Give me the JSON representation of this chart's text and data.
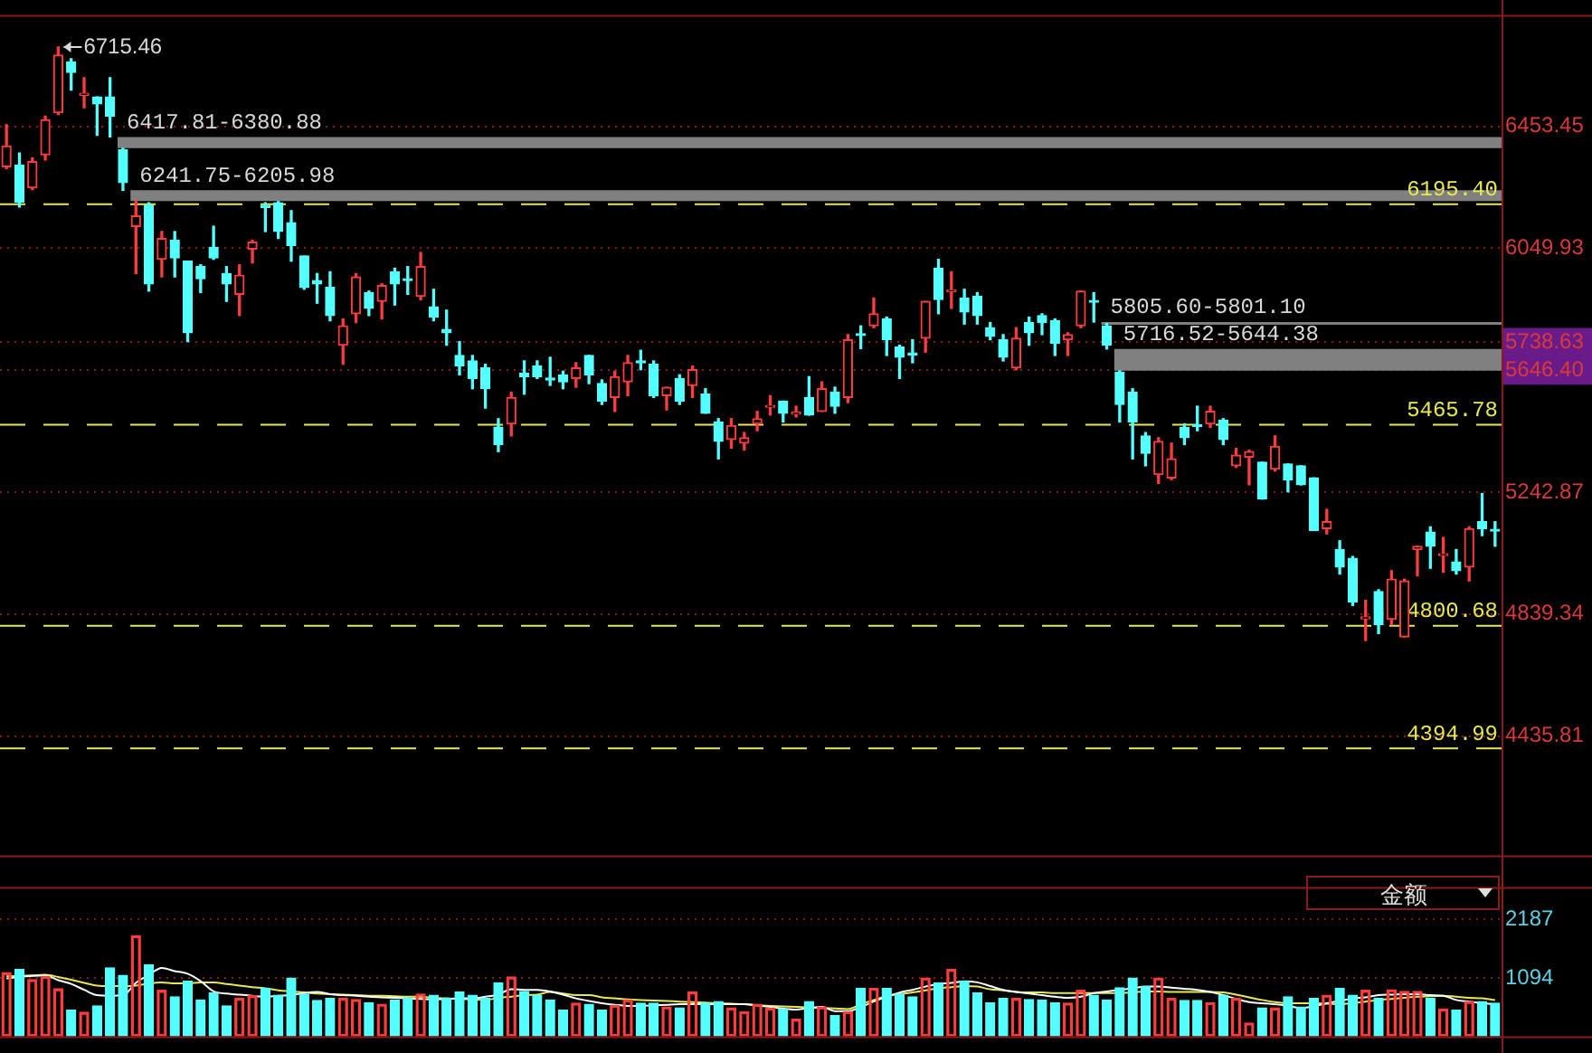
{
  "chart_data": [
    {
      "type": "candlestick",
      "tick_labels": "y",
      "grid": "y",
      "ylim": [
        4041,
        6816
      ],
      "yticks": [
        6453.45,
        6049.93,
        5738.63,
        {
          "value": 5646.4,
          "label": "5646.40"
        },
        5242.87,
        4839.34,
        4435.81
      ],
      "categories": [
        null,
        null,
        null,
        null,
        null,
        null,
        null,
        null,
        null,
        null,
        null,
        null,
        null,
        null,
        null,
        null,
        null,
        null,
        null,
        null,
        null,
        null,
        null,
        null,
        null,
        null,
        null,
        null,
        null,
        null,
        null,
        null,
        null,
        null,
        null,
        null,
        null,
        null,
        null,
        null,
        null,
        null,
        null,
        null,
        null,
        null,
        null,
        null,
        null,
        null,
        null,
        null,
        null,
        null,
        null,
        null,
        null,
        null,
        null,
        null,
        null,
        null,
        null,
        null,
        null,
        null,
        null,
        null,
        null,
        null,
        null,
        null,
        null,
        null,
        null,
        null,
        null,
        null,
        null,
        null,
        null,
        null,
        null,
        null,
        null,
        null,
        null,
        null,
        null,
        null,
        null,
        null,
        null,
        null,
        null,
        null,
        null,
        null,
        null,
        null,
        null,
        null,
        null,
        null,
        null,
        null,
        null,
        null,
        null,
        null,
        null,
        null,
        null,
        null,
        null,
        null
      ],
      "ohlc": [
        [
          6319,
          6458,
          6313,
          6388
        ],
        [
          6325,
          6365,
          6186,
          6203
        ],
        [
          6250,
          6348,
          6244,
          6336
        ],
        [
          6359,
          6487,
          6342,
          6475
        ],
        [
          6498,
          6715.46,
          6492,
          6689
        ],
        [
          6666,
          6677,
          6573,
          6631
        ],
        [
          6556,
          6614,
          6515,
          6562
        ],
        [
          6550,
          6550,
          6423,
          6527
        ],
        [
          6550,
          6614,
          6417.81,
          6487
        ],
        [
          6375,
          6380.88,
          6241.75,
          6267
        ],
        [
          6122,
          6205.98,
          5966,
          6157
        ],
        [
          6192,
          6200,
          5908,
          5932
        ],
        [
          6013,
          6105,
          5955,
          6082
        ],
        [
          6076,
          6105,
          5955,
          6018
        ],
        [
          6007,
          6007,
          5741,
          5770
        ],
        [
          5989,
          5995,
          5903,
          5949
        ],
        [
          6053,
          6122,
          6013,
          6018
        ],
        [
          5966,
          5989,
          5874,
          5932
        ],
        [
          5897,
          5995,
          5827,
          5961
        ],
        [
          6047,
          6076,
          6001,
          6070
        ],
        [
          6190,
          6200,
          6105,
          6185
        ],
        [
          6200,
          6204,
          6082,
          6105
        ],
        [
          6134,
          6174,
          6007,
          6059
        ],
        [
          6024,
          6024,
          5914,
          5920
        ],
        [
          5943,
          5966,
          5868,
          5932
        ],
        [
          5920,
          5972,
          5810,
          5827
        ],
        [
          5729,
          5816,
          5666,
          5793
        ],
        [
          5833,
          5966,
          5804,
          5955
        ],
        [
          5903,
          5908,
          5827,
          5851
        ],
        [
          5874,
          5932,
          5816,
          5926
        ],
        [
          5972,
          5984,
          5862,
          5932
        ],
        [
          5949,
          5989,
          5897,
          5943
        ],
        [
          5891,
          6036,
          5879,
          5989
        ],
        [
          5856,
          5914,
          5810,
          5822
        ],
        [
          5781,
          5845,
          5729,
          5770
        ],
        [
          5695,
          5741,
          5631,
          5660
        ],
        [
          5677,
          5695,
          5585,
          5619
        ],
        [
          5654,
          5666,
          5521,
          5585
        ],
        [
          5458,
          5486,
          5377,
          5400
        ],
        [
          5469,
          5573,
          5429,
          5556
        ],
        [
          5637,
          5677,
          5567,
          5625
        ],
        [
          5660,
          5677,
          5619,
          5625
        ],
        [
          5619,
          5689,
          5596,
          5614
        ],
        [
          5631,
          5643,
          5585,
          5608
        ],
        [
          5619,
          5671,
          5590,
          5654
        ],
        [
          5695,
          5695,
          5602,
          5631
        ],
        [
          5602,
          5614,
          5533,
          5544
        ],
        [
          5556,
          5643,
          5510,
          5625
        ],
        [
          5608,
          5695,
          5562,
          5671
        ],
        [
          5677,
          5712,
          5648,
          5671
        ],
        [
          5666,
          5677,
          5556,
          5562
        ],
        [
          5562,
          5590,
          5515,
          5590
        ],
        [
          5619,
          5631,
          5533,
          5544
        ],
        [
          5596,
          5660,
          5556,
          5648
        ],
        [
          5567,
          5585,
          5504,
          5504
        ],
        [
          5475,
          5486,
          5353,
          5411
        ],
        [
          5417,
          5486,
          5388,
          5463
        ],
        [
          5405,
          5440,
          5382,
          5423
        ],
        [
          5469,
          5510,
          5446,
          5486
        ],
        [
          5524,
          5562,
          5498,
          5530
        ],
        [
          5544,
          5544,
          5475,
          5504
        ],
        [
          5501,
          5527,
          5492,
          5504
        ],
        [
          5556,
          5625,
          5498,
          5498
        ],
        [
          5510,
          5608,
          5510,
          5585
        ],
        [
          5573,
          5590,
          5504,
          5527
        ],
        [
          5556,
          5764,
          5539,
          5747
        ],
        [
          5767,
          5793,
          5718,
          5761
        ],
        [
          5793,
          5885,
          5787,
          5833
        ],
        [
          5816,
          5822,
          5695,
          5747
        ],
        [
          5723,
          5729,
          5619,
          5689
        ],
        [
          5703,
          5747,
          5671,
          5697
        ],
        [
          5752,
          5874,
          5706,
          5874
        ],
        [
          5984,
          6013,
          5833,
          5880
        ],
        [
          5906,
          5972,
          5851,
          5911
        ],
        [
          5885,
          5914,
          5799,
          5839
        ],
        [
          5891,
          5903,
          5799,
          5827
        ],
        [
          5787,
          5804,
          5747,
          5758
        ],
        [
          5747,
          5764,
          5677,
          5689
        ],
        [
          5654,
          5787,
          5648,
          5752
        ],
        [
          5804,
          5822,
          5729,
          5770
        ],
        [
          5827,
          5833,
          5764,
          5804
        ],
        [
          5810,
          5816,
          5695,
          5735
        ],
        [
          5747,
          5770,
          5695,
          5764
        ],
        [
          5793,
          5908,
          5787,
          5908
        ],
        [
          5877,
          5903,
          5805.6,
          5871
        ],
        [
          5793,
          5801.1,
          5716.52,
          5729
        ],
        [
          5640,
          5644.38,
          5475,
          5533
        ],
        [
          5573,
          5585,
          5353,
          5475
        ],
        [
          5429,
          5440,
          5330,
          5371
        ],
        [
          5301,
          5423,
          5272,
          5411
        ],
        [
          5290,
          5405,
          5284,
          5353
        ],
        [
          5457,
          5469,
          5400,
          5423
        ],
        [
          5466,
          5527,
          5446,
          5460
        ],
        [
          5469,
          5527,
          5457,
          5510
        ],
        [
          5481,
          5486,
          5400,
          5417
        ],
        [
          5330,
          5388,
          5325,
          5365
        ],
        [
          5359,
          5382,
          5267,
          5377
        ],
        [
          5342,
          5342,
          5220,
          5220
        ],
        [
          5319,
          5429,
          5313,
          5394
        ],
        [
          5336,
          5336,
          5244,
          5284
        ],
        [
          5330,
          5330,
          5267,
          5267
        ],
        [
          5290,
          5290,
          5116,
          5116
        ],
        [
          5122,
          5186,
          5105,
          5145
        ],
        [
          5053,
          5082,
          4972,
          4995
        ],
        [
          5024,
          5030,
          4868,
          4879
        ],
        [
          4824,
          4885,
          4752,
          4830
        ],
        [
          4914,
          4920,
          4775,
          4804
        ],
        [
          4822,
          4983,
          4804,
          4955
        ],
        [
          4764,
          4955,
          4764,
          4949
        ],
        [
          5053,
          5064,
          4966,
          5064
        ],
        [
          5111,
          5128,
          4991,
          5064
        ],
        [
          5033,
          5093,
          4978,
          5038
        ],
        [
          5012,
          5053,
          4972,
          4983
        ],
        [
          4995,
          5128,
          4949,
          5122
        ],
        [
          5145,
          5238,
          5099,
          5122
        ],
        [
          5119,
          5145,
          5064,
          5114
        ]
      ],
      "ref_lines": [
        {
          "axis": "y",
          "value": 6195.4,
          "label": "6195.40",
          "color": "#e8e850",
          "line_style": "dashed"
        },
        {
          "axis": "y",
          "value": 5465.78,
          "label": "5465.78",
          "color": "#e8e850",
          "line_style": "dashed"
        },
        {
          "axis": "y",
          "value": 4800.68,
          "label": "4800.68",
          "color": "#e8e850",
          "line_style": "dashed"
        },
        {
          "axis": "y",
          "value": 4394.99,
          "label": "4394.99",
          "color": "#e8e850",
          "line_style": "dashed"
        }
      ],
      "bands": [
        {
          "axis": "y",
          "from": 6417.81,
          "to": 6380.88,
          "label": "6417.81-6380.88",
          "color": "#808080"
        },
        {
          "axis": "y",
          "from": 6241.75,
          "to": 6205.98,
          "label": "6241.75-6205.98",
          "color": "#808080"
        },
        {
          "axis": "y",
          "from": 5805.6,
          "to": 5801.1,
          "label": "5805.60-5801.10",
          "color": "#808080"
        },
        {
          "axis": "y",
          "from": 5716.52,
          "to": 5644.38,
          "label": "5716.52-5644.38",
          "color": "#808080"
        }
      ],
      "annotations": [
        "6715.46"
      ]
    },
    {
      "type": "bar",
      "title": "金额",
      "tick_labels": "y",
      "grid": "y",
      "ylim": [
        0,
        2760
      ],
      "yticks": [
        2187,
        1094
      ],
      "categories": [
        null,
        null,
        null,
        null,
        null,
        null,
        null,
        null,
        null,
        null,
        null,
        null,
        null,
        null,
        null,
        null,
        null,
        null,
        null,
        null,
        null,
        null,
        null,
        null,
        null,
        null,
        null,
        null,
        null,
        null,
        null,
        null,
        null,
        null,
        null,
        null,
        null,
        null,
        null,
        null,
        null,
        null,
        null,
        null,
        null,
        null,
        null,
        null,
        null,
        null,
        null,
        null,
        null,
        null,
        null,
        null,
        null,
        null,
        null,
        null,
        null,
        null,
        null,
        null,
        null,
        null,
        null,
        null,
        null,
        null,
        null,
        null,
        null,
        null,
        null,
        null,
        null,
        null,
        null,
        null,
        null,
        null,
        null,
        null,
        null,
        null,
        null,
        null,
        null,
        null,
        null,
        null,
        null,
        null,
        null,
        null,
        null,
        null,
        null,
        null,
        null,
        null,
        null,
        null,
        null,
        null,
        null,
        null,
        null,
        null,
        null,
        null,
        null,
        null,
        null,
        null
      ],
      "series": [
        {
          "type": "bar",
          "colors": [
            "#ff3c3c",
            "#54ffff",
            "#ff3c3c",
            "#ff3c3c",
            "#ff3c3c",
            "#54ffff",
            "#ff3c3c",
            "#54ffff",
            "#54ffff",
            "#54ffff",
            "#ff3c3c",
            "#54ffff",
            "#ff3c3c",
            "#54ffff",
            "#54ffff",
            "#54ffff",
            "#54ffff",
            "#54ffff",
            "#ff3c3c",
            "#ff3c3c",
            "#54ffff",
            "#54ffff",
            "#54ffff",
            "#54ffff",
            "#54ffff",
            "#54ffff",
            "#ff3c3c",
            "#ff3c3c",
            "#54ffff",
            "#ff3c3c",
            "#54ffff",
            "#54ffff",
            "#ff3c3c",
            "#54ffff",
            "#54ffff",
            "#54ffff",
            "#54ffff",
            "#54ffff",
            "#54ffff",
            "#ff3c3c",
            "#54ffff",
            "#54ffff",
            "#54ffff",
            "#54ffff",
            "#ff3c3c",
            "#54ffff",
            "#54ffff",
            "#ff3c3c",
            "#ff3c3c",
            "#54ffff",
            "#54ffff",
            "#ff3c3c",
            "#54ffff",
            "#ff3c3c",
            "#54ffff",
            "#54ffff",
            "#ff3c3c",
            "#ff3c3c",
            "#ff3c3c",
            "#ff3c3c",
            "#54ffff",
            "#ff3c3c",
            "#54ffff",
            "#ff3c3c",
            "#54ffff",
            "#ff3c3c",
            "#54ffff",
            "#ff3c3c",
            "#54ffff",
            "#54ffff",
            "#54ffff",
            "#ff3c3c",
            "#54ffff",
            "#ff3c3c",
            "#54ffff",
            "#54ffff",
            "#54ffff",
            "#54ffff",
            "#ff3c3c",
            "#54ffff",
            "#54ffff",
            "#54ffff",
            "#ff3c3c",
            "#ff3c3c",
            "#54ffff",
            "#54ffff",
            "#54ffff",
            "#54ffff",
            "#54ffff",
            "#ff3c3c",
            "#ff3c3c",
            "#54ffff",
            "#54ffff",
            "#ff3c3c",
            "#54ffff",
            "#ff3c3c",
            "#ff3c3c",
            "#54ffff",
            "#ff3c3c",
            "#54ffff",
            "#54ffff",
            "#54ffff",
            "#ff3c3c",
            "#54ffff",
            "#54ffff",
            "#ff3c3c",
            "#54ffff",
            "#ff3c3c",
            "#ff3c3c",
            "#ff3c3c",
            "#54ffff",
            "#ff3c3c",
            "#54ffff",
            "#ff3c3c",
            "#54ffff",
            "#54ffff"
          ],
          "values": [
            1190,
            1250,
            1060,
            1120,
            890,
            490,
            450,
            570,
            1280,
            1140,
            1880,
            1340,
            860,
            740,
            1030,
            680,
            810,
            570,
            710,
            760,
            900,
            770,
            1090,
            790,
            670,
            710,
            710,
            690,
            630,
            600,
            680,
            710,
            790,
            770,
            710,
            830,
            770,
            710,
            1000,
            1110,
            840,
            770,
            680,
            490,
            620,
            600,
            490,
            580,
            680,
            620,
            620,
            550,
            530,
            830,
            620,
            650,
            530,
            460,
            600,
            530,
            510,
            320,
            650,
            550,
            390,
            460,
            900,
            900,
            900,
            790,
            740,
            1090,
            1000,
            1250,
            1030,
            810,
            630,
            710,
            710,
            690,
            680,
            630,
            620,
            860,
            770,
            680,
            910,
            1090,
            930,
            1090,
            710,
            670,
            670,
            630,
            770,
            710,
            250,
            530,
            530,
            740,
            550,
            710,
            770,
            900,
            770,
            860,
            710,
            870,
            840,
            840,
            710,
            510,
            490,
            650,
            650,
            620
          ]
        },
        {
          "type": "line",
          "color": "#ffffff",
          "values": [
            1080,
            1110,
            1130,
            1140,
            1050,
            980,
            870,
            770,
            760,
            770,
            1000,
            1150,
            1280,
            1220,
            1170,
            1030,
            840,
            800,
            780,
            760,
            740,
            760,
            770,
            810,
            830,
            790,
            770,
            760,
            740,
            730,
            720,
            710,
            700,
            690,
            700,
            710,
            710,
            740,
            780,
            880,
            870,
            870,
            840,
            780,
            710,
            660,
            620,
            590,
            570,
            570,
            580,
            590,
            600,
            600,
            600,
            600,
            600,
            600,
            580,
            550,
            520,
            500,
            530,
            550,
            470,
            470,
            550,
            650,
            740,
            820,
            870,
            930,
            980,
            1000,
            1030,
            1010,
            940,
            870,
            830,
            800,
            770,
            740,
            720,
            740,
            810,
            840,
            870,
            900,
            930,
            930,
            910,
            890,
            870,
            830,
            770,
            700,
            640,
            620,
            600,
            570,
            530,
            560,
            620,
            660,
            710,
            730,
            770,
            780,
            790,
            790,
            770,
            760,
            680,
            650,
            620,
            600
          ]
        },
        {
          "type": "line",
          "color": "#e8e850",
          "values": [
            1120,
            1130,
            1140,
            1150,
            1110,
            1060,
            1000,
            950,
            940,
            940,
            950,
            990,
            1010,
            990,
            990,
            1010,
            1010,
            980,
            950,
            920,
            900,
            860,
            840,
            820,
            800,
            790,
            780,
            770,
            760,
            760,
            750,
            740,
            740,
            720,
            710,
            700,
            690,
            680,
            720,
            740,
            770,
            780,
            830,
            800,
            770,
            770,
            730,
            710,
            690,
            680,
            670,
            660,
            650,
            640,
            630,
            620,
            610,
            600,
            580,
            570,
            560,
            550,
            540,
            530,
            520,
            510,
            600,
            680,
            750,
            790,
            820,
            860,
            900,
            920,
            940,
            930,
            880,
            860,
            830,
            820,
            820,
            810,
            810,
            810,
            810,
            810,
            810,
            820,
            840,
            840,
            830,
            830,
            830,
            830,
            820,
            780,
            730,
            680,
            640,
            620,
            620,
            620,
            610,
            600,
            620,
            650,
            680,
            700,
            720,
            740,
            750,
            760,
            740,
            720,
            710,
            680
          ]
        }
      ]
    }
  ]
}
